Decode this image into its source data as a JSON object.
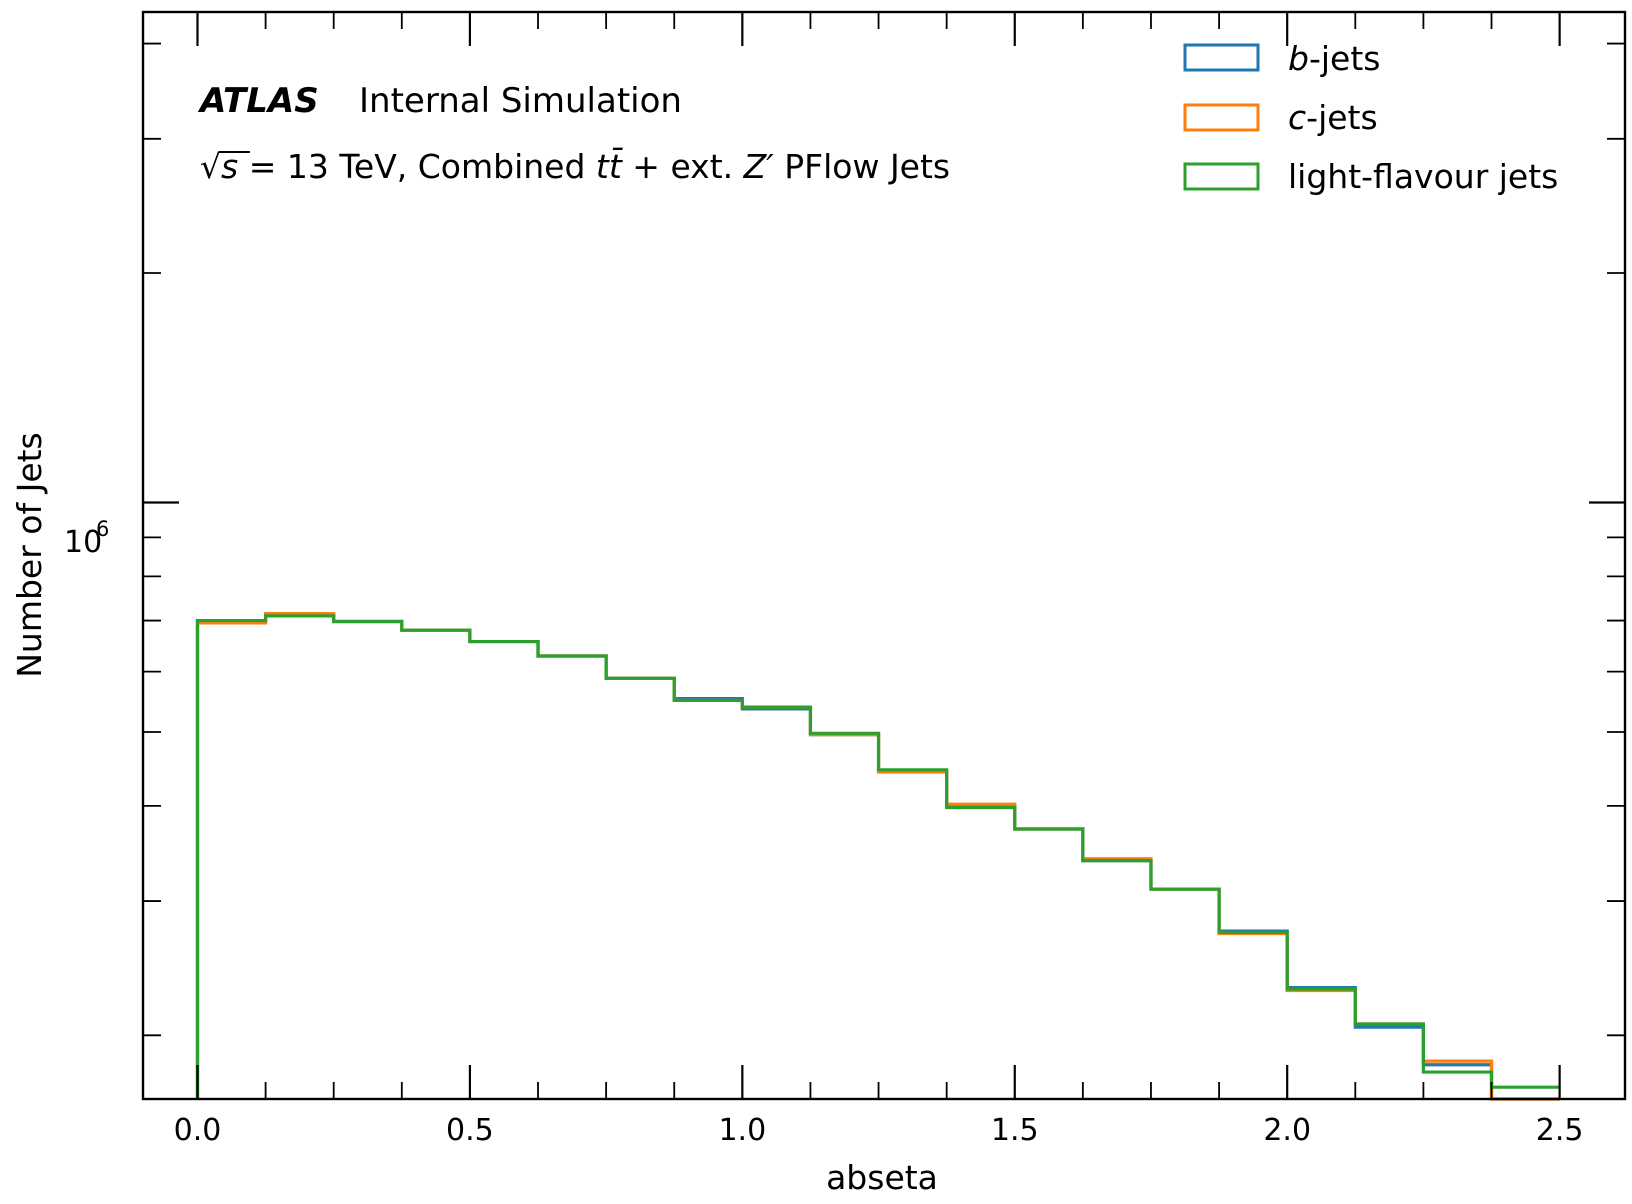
{
  "chart_data": {
    "type": "histogram-step",
    "atlas_label": "ATLAS",
    "internal_label": "Internal Simulation",
    "subtitle_parts": {
      "sqrt": "√",
      "s": "s",
      "rest": " = 13 TeV, Combined ",
      "tt_t1": "t",
      "tt_t2": "t̄",
      "plus": " +  ext. ",
      "zprime": "Z′",
      "tail": " PFlow Jets"
    },
    "xlabel": "abseta",
    "ylabel": "Number of Jets",
    "y_tick_base": "10",
    "y_tick_exp": "6",
    "y_scale": "log",
    "xlim": [
      -0.1,
      2.62
    ],
    "ylim": [
      165000,
      4400000
    ],
    "x_ticks": [
      "0.0",
      "0.5",
      "1.0",
      "1.5",
      "2.0",
      "2.5"
    ],
    "bin_edges": [
      0.0,
      0.125,
      0.25,
      0.375,
      0.5,
      0.625,
      0.75,
      0.875,
      1.0,
      1.125,
      1.25,
      1.375,
      1.5,
      1.625,
      1.75,
      1.875,
      2.0,
      2.125,
      2.25,
      2.375,
      2.5
    ],
    "series": [
      {
        "name": "b-jets",
        "name_italic": "b",
        "name_rest": "-jets",
        "color": "#1f77b4",
        "values": [
          700000,
          712000,
          698000,
          680000,
          657000,
          629000,
          588000,
          553000,
          536000,
          496000,
          445000,
          400000,
          373000,
          339000,
          311000,
          274000,
          231000,
          205000,
          183000,
          165000
        ]
      },
      {
        "name": "c-jets",
        "name_italic": "c",
        "name_rest": "-jets",
        "color": "#ff7f0e",
        "values": [
          695000,
          715000,
          698000,
          680000,
          657000,
          629000,
          588000,
          550000,
          539000,
          496000,
          443000,
          402000,
          373000,
          341000,
          311000,
          272000,
          229000,
          207000,
          185000,
          165000
        ]
      },
      {
        "name": "light-flavour jets",
        "name_italic": "",
        "name_rest": "light-flavour jets",
        "color": "#2ca02c",
        "values": [
          700000,
          710000,
          698000,
          680000,
          657000,
          629000,
          588000,
          550000,
          539000,
          498000,
          446000,
          398000,
          373000,
          339000,
          311000,
          273000,
          230000,
          207000,
          179000,
          171000
        ]
      }
    ],
    "legend_position": "top-right"
  }
}
